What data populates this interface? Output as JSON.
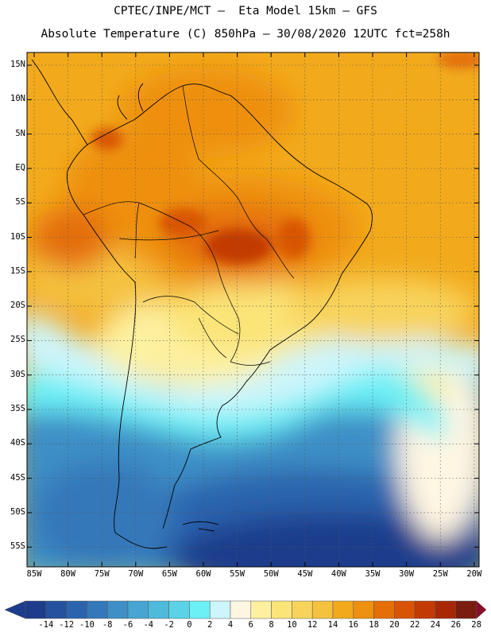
{
  "header": {
    "title_line1": "CPTEC/INPE/MCT –  Eta Model 15km – GFS",
    "title_line2": "Absolute Temperature (C) 850hPa – 30/08/2020 12UTC fct=258h"
  },
  "map": {
    "lat_labels": [
      "15N",
      "10N",
      "5N",
      "EQ",
      "5S",
      "10S",
      "15S",
      "20S",
      "25S",
      "30S",
      "35S",
      "40S",
      "45S",
      "50S",
      "55S"
    ],
    "lon_labels": [
      "85W",
      "80W",
      "75W",
      "70W",
      "65W",
      "60W",
      "55W",
      "50W",
      "45W",
      "40W",
      "35W",
      "30W",
      "25W",
      "20W"
    ]
  },
  "colorbar": {
    "labels": [
      "-14",
      "-12",
      "-10",
      "-8",
      "-6",
      "-4",
      "-2",
      "0",
      "2",
      "4",
      "6",
      "8",
      "10",
      "12",
      "14",
      "16",
      "18",
      "20",
      "22",
      "24",
      "26",
      "28"
    ],
    "colors": [
      "#1e3c8c",
      "#25529e",
      "#2b64ad",
      "#3478b9",
      "#3e8fc6",
      "#46a5d1",
      "#4fbad9",
      "#5ad3e6",
      "#6cf0f6",
      "#cdf5fb",
      "#fff6e2",
      "#fdf0a0",
      "#fbe478",
      "#f8d35c",
      "#f5c240",
      "#f2aa1c",
      "#ee9010",
      "#e46e08",
      "#d85404",
      "#c23a04",
      "#a82806",
      "#7a1c0e"
    ]
  },
  "chart_data": {
    "type": "heatmap",
    "title": "Absolute Temperature (C) 850hPa – 30/08/2020 12UTC fct=258h",
    "model": "CPTEC/INPE/MCT – Eta Model 15km – GFS",
    "x_range": [
      -86,
      -19
    ],
    "y_range": [
      -59,
      16
    ],
    "color_scale_min": -14,
    "color_scale_max": 28,
    "color_scale_step": 2
  }
}
